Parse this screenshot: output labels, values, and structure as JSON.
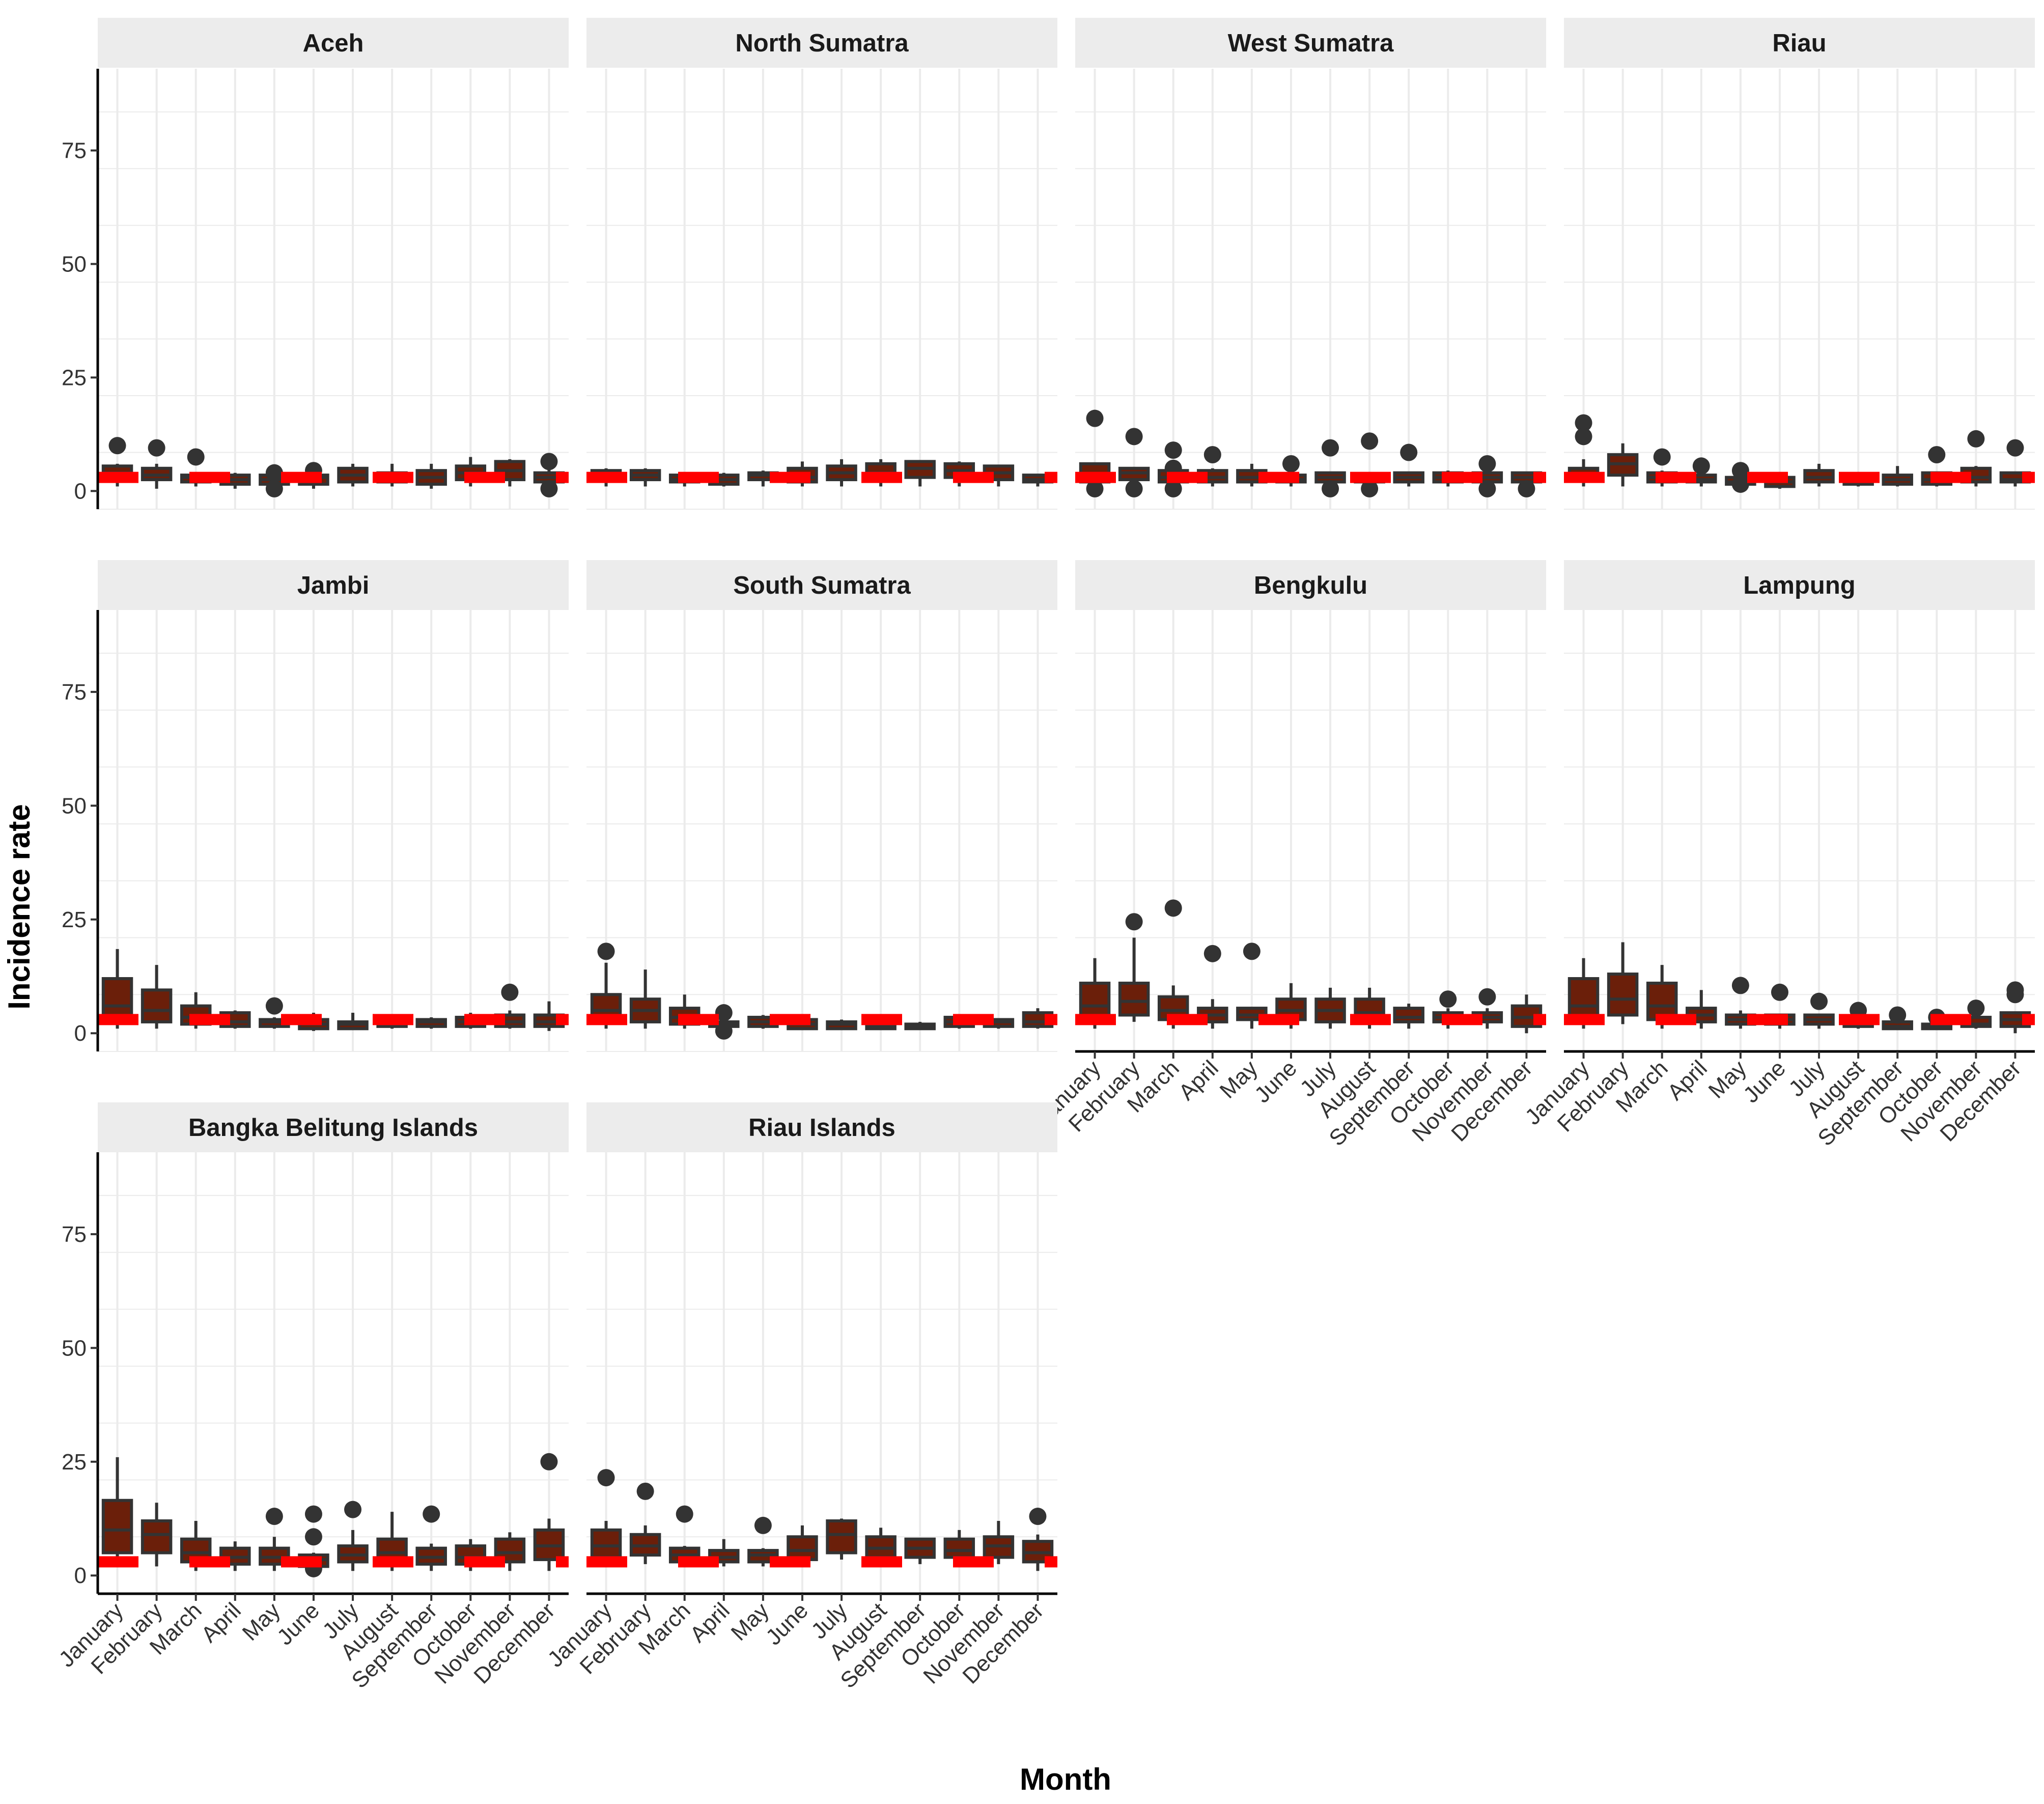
{
  "chart_data": {
    "type": "boxplot",
    "facet_layout": "4 columns x 3 rows",
    "xlabel": "Month",
    "ylabel": "Incidence rate",
    "ylim": [
      -4,
      93
    ],
    "yticks": [
      0,
      25,
      50,
      75
    ],
    "grid": true,
    "months": [
      "January",
      "February",
      "March",
      "April",
      "May",
      "June",
      "July",
      "August",
      "September",
      "October",
      "November",
      "December"
    ],
    "threshold": {
      "value": 3,
      "color": "#ff0000",
      "style": "dashed"
    },
    "colors": {
      "box_fill": "#6b1f0a",
      "box_outline": "#333333",
      "outlier": "#333333",
      "strip_bg": "#ececec",
      "grid": "#ebebeb",
      "panel_bg": "#ffffff"
    },
    "panels": [
      {
        "name": "Aceh",
        "boxes": [
          [
            1,
            3,
            4,
            5.5,
            6,
            [
              10
            ]
          ],
          [
            0.5,
            2.5,
            3.5,
            5,
            6,
            [
              9.5
            ]
          ],
          [
            1,
            2,
            3,
            3.5,
            4,
            [
              7.5
            ]
          ],
          [
            0.5,
            1.5,
            2.5,
            3.5,
            4,
            []
          ],
          [
            1,
            1.5,
            2.5,
            3.5,
            4,
            [
              4,
              0.5
            ]
          ],
          [
            0.5,
            1.5,
            3,
            3.5,
            4,
            [
              4.5
            ]
          ],
          [
            1,
            2,
            3.5,
            5,
            6,
            []
          ],
          [
            1,
            2,
            3,
            4,
            6,
            []
          ],
          [
            0.5,
            1.5,
            3,
            4.5,
            6,
            []
          ],
          [
            1,
            2.5,
            4,
            5.5,
            7.5,
            []
          ],
          [
            1,
            2.5,
            4.5,
            6.5,
            7,
            []
          ],
          [
            1,
            2,
            3,
            4,
            5.5,
            [
              6.5,
              0.5
            ]
          ]
        ]
      },
      {
        "name": "North Sumatra",
        "boxes": [
          [
            1,
            2.5,
            3.5,
            4.5,
            5,
            []
          ],
          [
            1,
            2.5,
            3.5,
            4.5,
            5,
            []
          ],
          [
            1,
            2,
            2.5,
            3.5,
            4,
            []
          ],
          [
            1,
            1.5,
            2.5,
            3.5,
            4,
            []
          ],
          [
            1,
            2.5,
            3.5,
            4,
            4.5,
            []
          ],
          [
            1,
            2,
            3,
            5,
            6.5,
            []
          ],
          [
            1,
            2.5,
            4,
            5.5,
            7,
            []
          ],
          [
            1,
            2.5,
            4,
            6,
            7,
            []
          ],
          [
            1,
            3,
            5,
            6.5,
            6.5,
            []
          ],
          [
            1,
            3,
            4.5,
            6,
            6.5,
            []
          ],
          [
            1,
            2.5,
            4,
            5.5,
            5.5,
            []
          ],
          [
            1,
            2,
            2.5,
            3.5,
            3.5,
            []
          ]
        ]
      },
      {
        "name": "West Sumatra",
        "boxes": [
          [
            0.5,
            2,
            3.5,
            6,
            6,
            [
              16,
              0.5
            ]
          ],
          [
            0.5,
            2.5,
            4,
            5,
            5,
            [
              12,
              0.5
            ]
          ],
          [
            1,
            2,
            3,
            4.5,
            5,
            [
              9,
              5,
              0.5
            ]
          ],
          [
            1,
            2,
            3,
            4.5,
            5,
            [
              8
            ]
          ],
          [
            1,
            2,
            3,
            4.5,
            6,
            []
          ],
          [
            1,
            2,
            2.5,
            3.5,
            4,
            [
              6
            ]
          ],
          [
            1,
            2,
            3,
            4,
            4,
            [
              9.5,
              0.5
            ]
          ],
          [
            1,
            2,
            3,
            3.5,
            4,
            [
              11,
              0.5
            ]
          ],
          [
            1,
            2,
            3,
            4,
            4,
            [
              8.5
            ]
          ],
          [
            1,
            2,
            3,
            4,
            4.5,
            []
          ],
          [
            1,
            2,
            3,
            4,
            4,
            [
              6,
              0.5
            ]
          ],
          [
            1,
            2,
            3,
            4,
            4,
            [
              0.5
            ]
          ]
        ]
      },
      {
        "name": "Riau",
        "boxes": [
          [
            1,
            2.5,
            3.5,
            5,
            7,
            [
              15,
              12
            ]
          ],
          [
            1,
            3.5,
            6,
            8,
            10.5,
            []
          ],
          [
            1,
            2,
            3,
            4,
            4.5,
            [
              7.5
            ]
          ],
          [
            1,
            2,
            2.5,
            3.5,
            4,
            [
              5.5
            ]
          ],
          [
            0.5,
            1.5,
            2,
            3,
            4,
            [
              4.5,
              1.5
            ]
          ],
          [
            0.5,
            1,
            2,
            3,
            3.5,
            []
          ],
          [
            1,
            2,
            3,
            4.5,
            6,
            []
          ],
          [
            1,
            1.5,
            2.5,
            3.5,
            3.5,
            []
          ],
          [
            1,
            1.5,
            2.5,
            3.5,
            5.5,
            []
          ],
          [
            1,
            1.5,
            2.5,
            4,
            4,
            [
              8
            ]
          ],
          [
            1,
            2,
            3,
            5,
            5.5,
            [
              11.5
            ]
          ],
          [
            1,
            2,
            2.5,
            4,
            4,
            [
              9.5
            ]
          ]
        ]
      },
      {
        "name": "Jambi",
        "boxes": [
          [
            1,
            2.5,
            6,
            12,
            18.5,
            []
          ],
          [
            1,
            2.5,
            5,
            9.5,
            15,
            []
          ],
          [
            1,
            2,
            3.5,
            6,
            9,
            []
          ],
          [
            1,
            1.5,
            2.5,
            4.5,
            5,
            []
          ],
          [
            1,
            1.5,
            2.5,
            3,
            3.5,
            [
              6
            ]
          ],
          [
            0.5,
            1,
            2,
            3,
            4.5,
            []
          ],
          [
            1,
            1,
            2,
            2.5,
            4.5,
            []
          ],
          [
            1,
            1.5,
            2.5,
            3.5,
            3.5,
            []
          ],
          [
            1,
            1.5,
            2.5,
            3,
            3.5,
            []
          ],
          [
            1,
            1.5,
            2.5,
            3.5,
            4.5,
            []
          ],
          [
            1,
            1.5,
            2.5,
            4,
            5,
            [
              9
            ]
          ],
          [
            0.5,
            1.5,
            2.5,
            4,
            7,
            []
          ]
        ]
      },
      {
        "name": "South Sumatra",
        "boxes": [
          [
            1,
            3,
            5,
            8.5,
            15.5,
            [
              18
            ]
          ],
          [
            1,
            2.5,
            5,
            7.5,
            14,
            []
          ],
          [
            1,
            2,
            3.5,
            5.5,
            8.5,
            []
          ],
          [
            1,
            1.5,
            2,
            2.5,
            3,
            [
              4.5,
              0.5
            ]
          ],
          [
            1,
            1.5,
            2.5,
            3.5,
            4,
            []
          ],
          [
            1,
            1,
            2,
            3,
            3,
            []
          ],
          [
            1,
            1,
            2,
            2.5,
            3,
            []
          ],
          [
            1,
            1,
            1.5,
            2.5,
            3,
            []
          ],
          [
            1,
            1,
            1.5,
            2,
            2.5,
            []
          ],
          [
            1,
            1.5,
            2.5,
            3.5,
            4,
            []
          ],
          [
            1,
            1.5,
            2.5,
            3,
            3,
            []
          ],
          [
            1,
            1.5,
            2.5,
            4.5,
            5.5,
            []
          ]
        ]
      },
      {
        "name": "Bengkulu",
        "boxes": [
          [
            1,
            3,
            6,
            11,
            16.5,
            []
          ],
          [
            2.5,
            4,
            7,
            11,
            21,
            [
              24.5
            ]
          ],
          [
            1,
            3,
            5,
            8,
            10.5,
            [
              27.5
            ]
          ],
          [
            1,
            2.5,
            4,
            5.5,
            7.5,
            [
              17.5
            ]
          ],
          [
            1,
            3,
            4,
            5.5,
            5.5,
            [
              18
            ]
          ],
          [
            1,
            3,
            5,
            7.5,
            11,
            []
          ],
          [
            1,
            2.5,
            5,
            7.5,
            10,
            []
          ],
          [
            1,
            2.5,
            4.5,
            7.5,
            10,
            []
          ],
          [
            1,
            2.5,
            3.5,
            5.5,
            6.5,
            []
          ],
          [
            1,
            2.5,
            3.5,
            4.5,
            5.5,
            [
              7.5
            ]
          ],
          [
            1,
            2.5,
            3.5,
            4.5,
            5.5,
            [
              8
            ]
          ],
          [
            0,
            1.5,
            3.5,
            6,
            8.5,
            []
          ]
        ]
      },
      {
        "name": "Lampung",
        "boxes": [
          [
            1,
            3.5,
            6,
            12,
            16.5,
            []
          ],
          [
            2,
            4,
            7.5,
            13,
            20,
            []
          ],
          [
            1,
            3,
            6,
            11,
            15,
            []
          ],
          [
            1,
            2.5,
            4,
            5.5,
            9.5,
            []
          ],
          [
            1,
            2,
            3,
            4,
            5,
            [
              10.5
            ]
          ],
          [
            1,
            2,
            3,
            4,
            4,
            [
              9
            ]
          ],
          [
            1,
            2,
            3,
            4,
            4,
            [
              7
            ]
          ],
          [
            1,
            1.5,
            2.5,
            3.5,
            3.5,
            [
              5
            ]
          ],
          [
            1,
            1,
            1.5,
            2.5,
            2.5,
            [
              4
            ]
          ],
          [
            1,
            1,
            1.5,
            2,
            3,
            [
              3.5
            ]
          ],
          [
            1,
            1.5,
            2,
            3.5,
            3.5,
            [
              5.5
            ]
          ],
          [
            0,
            1.5,
            3,
            4.5,
            4.5,
            [
              9.5,
              8.5
            ]
          ]
        ]
      },
      {
        "name": "Bangka Belitung Islands",
        "boxes": [
          [
            3,
            5,
            10,
            16.5,
            26,
            []
          ],
          [
            2,
            5,
            9,
            12,
            16,
            []
          ],
          [
            1,
            3,
            5,
            8,
            12,
            []
          ],
          [
            1,
            2.5,
            4,
            6,
            7.5,
            []
          ],
          [
            1,
            2.5,
            4,
            6,
            8.5,
            [
              13
            ]
          ],
          [
            1,
            2,
            3.5,
            4.5,
            5,
            [
              13.5,
              8.5,
              1.5
            ]
          ],
          [
            1,
            3,
            4.5,
            6.5,
            10,
            [
              14.5
            ]
          ],
          [
            1,
            2.5,
            5,
            8,
            14,
            []
          ],
          [
            1,
            2.5,
            4,
            6,
            7,
            [
              13.5
            ]
          ],
          [
            1,
            2.5,
            4,
            6.5,
            8,
            []
          ],
          [
            1,
            3,
            5,
            8,
            9.5,
            []
          ],
          [
            1,
            3.5,
            6.5,
            10,
            12.5,
            [
              25
            ]
          ]
        ]
      },
      {
        "name": "Riau Islands",
        "boxes": [
          [
            2,
            4,
            6.5,
            10,
            12,
            [
              21.5
            ]
          ],
          [
            2.5,
            4.5,
            6.5,
            9,
            11,
            [
              18.5
            ]
          ],
          [
            2,
            3,
            4.5,
            6,
            6.5,
            [
              13.5
            ]
          ],
          [
            2,
            3,
            4,
            5.5,
            8,
            []
          ],
          [
            2,
            3,
            4.5,
            5.5,
            6,
            [
              11
            ]
          ],
          [
            2,
            3.5,
            5.5,
            8.5,
            11,
            []
          ],
          [
            3.5,
            5,
            9,
            12,
            12.5,
            []
          ],
          [
            2.5,
            4,
            6,
            8.5,
            10.5,
            []
          ],
          [
            2.5,
            4,
            6,
            8,
            8,
            []
          ],
          [
            2.5,
            4,
            5.5,
            8,
            10,
            []
          ],
          [
            2.5,
            4,
            6.5,
            8.5,
            12,
            []
          ],
          [
            1,
            3,
            5,
            7.5,
            9,
            [
              13
            ]
          ]
        ]
      }
    ]
  }
}
